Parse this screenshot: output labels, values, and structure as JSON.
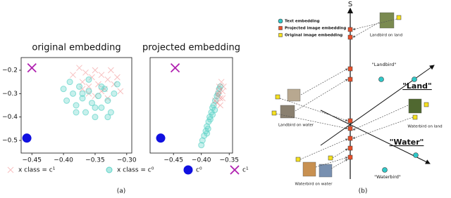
{
  "chart_data": [
    {
      "type": "scatter",
      "title": "original embedding",
      "xlim": [
        -0.467,
        -0.292
      ],
      "ylim": [
        -0.554,
        -0.146
      ],
      "xticks": [
        {
          "value": -0.45,
          "label": "−0.45"
        },
        {
          "value": -0.4,
          "label": "−0.40"
        },
        {
          "value": -0.35,
          "label": "−0.35"
        },
        {
          "value": -0.3,
          "label": "−0.30"
        }
      ],
      "yticks": [
        {
          "value": -0.5,
          "label": "−0.5"
        },
        {
          "value": -0.4,
          "label": "−0.4"
        },
        {
          "value": -0.3,
          "label": "−0.3"
        },
        {
          "value": -0.2,
          "label": "−0.2"
        }
      ],
      "series": [
        {
          "name": "x class = c¹",
          "color": "#f08080",
          "marker": "x",
          "size": 4,
          "opacity": 0.5,
          "x": [
            -0.385,
            -0.375,
            -0.37,
            -0.365,
            -0.36,
            -0.355,
            -0.35,
            -0.345,
            -0.34,
            -0.335,
            -0.33,
            -0.325,
            -0.32,
            -0.315,
            -0.31,
            -0.36,
            -0.35,
            -0.34,
            -0.37,
            -0.33
          ],
          "values": [
            -0.22,
            -0.19,
            -0.25,
            -0.21,
            -0.27,
            -0.23,
            -0.2,
            -0.26,
            -0.22,
            -0.28,
            -0.24,
            -0.2,
            -0.26,
            -0.23,
            -0.29,
            -0.3,
            -0.31,
            -0.29,
            -0.28,
            -0.32
          ]
        },
        {
          "name": "x class = c⁰",
          "color": "#5fd3c8",
          "marker": "o",
          "size": 4,
          "opacity": 0.35,
          "x": [
            -0.4,
            -0.395,
            -0.39,
            -0.385,
            -0.38,
            -0.375,
            -0.37,
            -0.365,
            -0.36,
            -0.355,
            -0.35,
            -0.345,
            -0.34,
            -0.335,
            -0.33,
            -0.325,
            -0.32,
            -0.315,
            -0.38,
            -0.36,
            -0.34,
            -0.33,
            -0.35,
            -0.37
          ],
          "values": [
            -0.28,
            -0.33,
            -0.25,
            -0.3,
            -0.35,
            -0.27,
            -0.32,
            -0.38,
            -0.29,
            -0.34,
            -0.4,
            -0.31,
            -0.36,
            -0.28,
            -0.33,
            -0.38,
            -0.3,
            -0.26,
            -0.38,
            -0.24,
            -0.27,
            -0.4,
            -0.36,
            -0.3
          ]
        },
        {
          "name": "c⁰",
          "color": "#1010e0",
          "marker": "o",
          "size": 6,
          "opacity": 1,
          "x": [
            -0.458
          ],
          "values": [
            -0.49
          ]
        },
        {
          "name": "c¹",
          "color": "#b020b0",
          "marker": "x",
          "size": 6,
          "opacity": 1,
          "x": [
            -0.45
          ],
          "values": [
            -0.19
          ]
        }
      ]
    },
    {
      "type": "scatter",
      "title": "projected embedding",
      "xlim": [
        -0.492,
        -0.344
      ],
      "ylim": [
        -0.554,
        -0.146
      ],
      "xticks": [
        {
          "value": -0.45,
          "label": "−0.45"
        },
        {
          "value": -0.4,
          "label": "−0.40"
        },
        {
          "value": -0.35,
          "label": "−0.35"
        }
      ],
      "series": [
        {
          "color": "#5fd3c8",
          "marker": "o",
          "size": 4,
          "opacity": 0.35,
          "x": [
            -0.4,
            -0.398,
            -0.395,
            -0.392,
            -0.39,
            -0.387,
            -0.385,
            -0.382,
            -0.38,
            -0.378,
            -0.375,
            -0.372,
            -0.37,
            -0.368,
            -0.366,
            -0.39,
            -0.384,
            -0.376,
            -0.388,
            -0.38
          ],
          "values": [
            -0.52,
            -0.5,
            -0.48,
            -0.46,
            -0.44,
            -0.42,
            -0.4,
            -0.38,
            -0.36,
            -0.35,
            -0.33,
            -0.31,
            -0.3,
            -0.28,
            -0.27,
            -0.47,
            -0.41,
            -0.37,
            -0.45,
            -0.39
          ]
        },
        {
          "color": "#f08080",
          "marker": "x",
          "size": 4,
          "opacity": 0.5,
          "x": [
            -0.372,
            -0.37,
            -0.368,
            -0.366,
            -0.364,
            -0.362,
            -0.36,
            -0.37,
            -0.366,
            -0.362,
            -0.375,
            -0.368
          ],
          "values": [
            -0.34,
            -0.3,
            -0.27,
            -0.32,
            -0.25,
            -0.29,
            -0.27,
            -0.31,
            -0.35,
            -0.32,
            -0.33,
            -0.29
          ]
        },
        {
          "color": "#1010e0",
          "marker": "o",
          "size": 6,
          "opacity": 1,
          "x": [
            -0.473
          ],
          "values": [
            -0.49
          ]
        },
        {
          "color": "#b020b0",
          "marker": "x",
          "size": 6,
          "opacity": 1,
          "x": [
            -0.447
          ],
          "values": [
            -0.19
          ]
        }
      ]
    }
  ],
  "captions": {
    "a": "(a)",
    "b": "(b)"
  },
  "diagram": {
    "axis_label": "S",
    "legend": [
      "Text embedding",
      "Projected image embedding",
      "Original image embedding"
    ],
    "landbird_on_land": "Landbird on land",
    "landbird_text": "\"Landbird\"",
    "land_text": "\"Land\"",
    "landbird_on_water": "Landbird on water",
    "waterbird_on_land": "Waterbird on land",
    "water_text": "\"Water\"",
    "waterbird_text": "\"Waterbird\"",
    "waterbird_on_water": "Waterbird on water"
  }
}
